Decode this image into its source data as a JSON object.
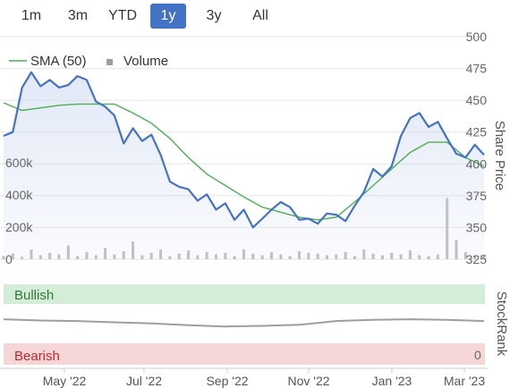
{
  "range_selector": {
    "buttons": [
      "1m",
      "3m",
      "YTD",
      "1y",
      "3y",
      "All"
    ],
    "selected": "1y"
  },
  "chart_data": {
    "type": "line",
    "legend": {
      "items": [
        "SMA (50)",
        "Volume"
      ],
      "placement": "top-left"
    },
    "x_labels": [
      "May '22",
      "Jul '22",
      "Sep '22",
      "Nov '22",
      "Jan '23",
      "Mar '23"
    ],
    "price_axis": {
      "label": "Share Price",
      "ticks": [
        325,
        350,
        375,
        400,
        425,
        450,
        475,
        500
      ],
      "ylim": [
        325,
        500
      ]
    },
    "volume_axis": {
      "ticks": [
        "0",
        "200k",
        "400k",
        "600k"
      ],
      "ylim": [
        0,
        1000000
      ]
    },
    "series": [
      {
        "name": "Price",
        "color": "#4472c4",
        "x": [
          0,
          1,
          2,
          3,
          4,
          5,
          6,
          7,
          8,
          9,
          10,
          11,
          12,
          13,
          14,
          15,
          16,
          17,
          18,
          19,
          20,
          21,
          22,
          23,
          24,
          25,
          26,
          27,
          28,
          29,
          30,
          31,
          32,
          33,
          34,
          35,
          36,
          37,
          38,
          39,
          40,
          41,
          42,
          43,
          44,
          45,
          46,
          47,
          48,
          49,
          50,
          51,
          52
        ],
        "values": [
          422,
          425,
          460,
          472,
          461,
          466,
          460,
          462,
          469,
          466,
          449,
          445,
          438,
          416,
          428,
          418,
          423,
          407,
          386,
          382,
          380,
          371,
          376,
          364,
          369,
          356,
          364,
          350,
          357,
          364,
          370,
          366,
          356,
          357,
          353,
          361,
          360,
          355,
          367,
          378,
          396,
          390,
          398,
          422,
          436,
          440,
          429,
          433,
          420,
          408,
          405,
          415,
          407
        ]
      },
      {
        "name": "SMA (50)",
        "color": "#4caf50",
        "x": [
          0,
          2,
          4,
          6,
          8,
          10,
          12,
          14,
          16,
          18,
          20,
          22,
          24,
          26,
          28,
          30,
          32,
          34,
          36,
          38,
          40,
          42,
          44,
          46,
          48,
          50,
          52
        ],
        "values": [
          448,
          442,
          444,
          446,
          447,
          447,
          447,
          440,
          432,
          420,
          405,
          392,
          383,
          374,
          366,
          362,
          358,
          356,
          358,
          370,
          383,
          396,
          409,
          417,
          417,
          405,
          398
        ]
      },
      {
        "name": "StockRank",
        "color": "#9e9e9e",
        "x": [
          0,
          4,
          8,
          12,
          16,
          20,
          24,
          28,
          32,
          34,
          36,
          40,
          44,
          48,
          52
        ],
        "values": [
          58,
          56,
          55,
          53,
          51,
          48,
          46,
          47,
          49,
          52,
          55,
          57,
          58,
          57,
          55
        ]
      }
    ],
    "volume": {
      "name": "Volume",
      "color": "#bdbdbd",
      "values": [
        20000,
        35000,
        15000,
        60000,
        25000,
        40000,
        30000,
        85000,
        20000,
        45000,
        25000,
        70000,
        30000,
        50000,
        110000,
        25000,
        40000,
        60000,
        20000,
        35000,
        55000,
        25000,
        45000,
        30000,
        40000,
        20000,
        60000,
        35000,
        25000,
        45000,
        30000,
        20000,
        50000,
        40000,
        35000,
        25000,
        30000,
        45000,
        20000,
        60000,
        35000,
        25000,
        40000,
        30000,
        55000,
        25000,
        20000,
        30000,
        380000,
        120000,
        45000,
        25000,
        30000
      ]
    },
    "stockrank": {
      "label": "StockRank",
      "top_label": "Bullish",
      "bottom_label": "Bearish",
      "zero_tick": "0"
    }
  }
}
